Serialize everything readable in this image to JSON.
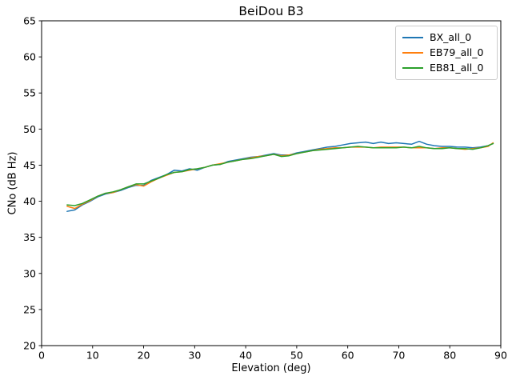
{
  "chart_data": {
    "type": "line",
    "title": "BeiDou B3",
    "xlabel": "Elevation (deg)",
    "ylabel": "CNo (dB Hz)",
    "xlim": [
      0,
      90
    ],
    "ylim": [
      20,
      65
    ],
    "xticks": [
      0,
      10,
      20,
      30,
      40,
      50,
      60,
      70,
      80,
      90
    ],
    "yticks": [
      20,
      25,
      30,
      35,
      40,
      45,
      50,
      55,
      60,
      65
    ],
    "grid": false,
    "legend_position": "upper right",
    "x": [
      5,
      6.5,
      8,
      9.5,
      11,
      12.5,
      14,
      15.5,
      17,
      18.5,
      20,
      21.5,
      23,
      24.5,
      26,
      27.5,
      29,
      30.5,
      32,
      33.5,
      35,
      36.5,
      38,
      39.5,
      41,
      42.5,
      44,
      45.5,
      47,
      48.5,
      50,
      51.5,
      53,
      54.5,
      56,
      57.5,
      59,
      60.5,
      62,
      63.5,
      65,
      66.5,
      68,
      69.5,
      71,
      72.5,
      74,
      75.5,
      77,
      78.5,
      80,
      81.5,
      83,
      84.5,
      86,
      87.5,
      88.5
    ],
    "series": [
      {
        "name": "BX_all_0",
        "color": "#1f77b4",
        "values": [
          38.6,
          38.8,
          39.5,
          40.0,
          40.6,
          41.0,
          41.2,
          41.5,
          41.9,
          42.2,
          42.2,
          42.9,
          43.3,
          43.7,
          44.3,
          44.2,
          44.5,
          44.3,
          44.7,
          45.0,
          45.1,
          45.5,
          45.7,
          45.9,
          46.1,
          46.2,
          46.4,
          46.6,
          46.4,
          46.4,
          46.7,
          46.9,
          47.1,
          47.3,
          47.5,
          47.6,
          47.8,
          48.0,
          48.1,
          48.2,
          48.0,
          48.2,
          48.0,
          48.1,
          48.0,
          47.9,
          48.3,
          47.9,
          47.7,
          47.6,
          47.6,
          47.5,
          47.5,
          47.4,
          47.5,
          47.7,
          48.0
        ]
      },
      {
        "name": "EB79_all_0",
        "color": "#ff7f0e",
        "values": [
          39.3,
          39.0,
          39.6,
          40.1,
          40.7,
          41.1,
          41.2,
          41.6,
          42.0,
          42.3,
          42.1,
          42.7,
          43.2,
          43.6,
          44.0,
          44.1,
          44.3,
          44.5,
          44.7,
          45.0,
          45.2,
          45.4,
          45.6,
          45.8,
          46.0,
          46.2,
          46.3,
          46.5,
          46.3,
          46.4,
          46.6,
          46.8,
          47.0,
          47.2,
          47.3,
          47.4,
          47.4,
          47.5,
          47.5,
          47.5,
          47.4,
          47.5,
          47.5,
          47.5,
          47.5,
          47.4,
          47.4,
          47.4,
          47.3,
          47.4,
          47.4,
          47.3,
          47.2,
          47.3,
          47.4,
          47.6,
          48.1
        ]
      },
      {
        "name": "EB81_all_0",
        "color": "#2ca02c",
        "values": [
          39.5,
          39.4,
          39.7,
          40.2,
          40.7,
          41.1,
          41.3,
          41.6,
          42.0,
          42.4,
          42.4,
          42.8,
          43.2,
          43.7,
          44.0,
          44.1,
          44.4,
          44.5,
          44.7,
          45.0,
          45.1,
          45.4,
          45.6,
          45.8,
          45.9,
          46.1,
          46.3,
          46.5,
          46.2,
          46.3,
          46.6,
          46.8,
          47.0,
          47.1,
          47.2,
          47.3,
          47.4,
          47.5,
          47.6,
          47.5,
          47.4,
          47.4,
          47.4,
          47.4,
          47.5,
          47.4,
          47.6,
          47.4,
          47.3,
          47.3,
          47.4,
          47.3,
          47.3,
          47.2,
          47.4,
          47.7,
          48.0
        ]
      }
    ]
  }
}
